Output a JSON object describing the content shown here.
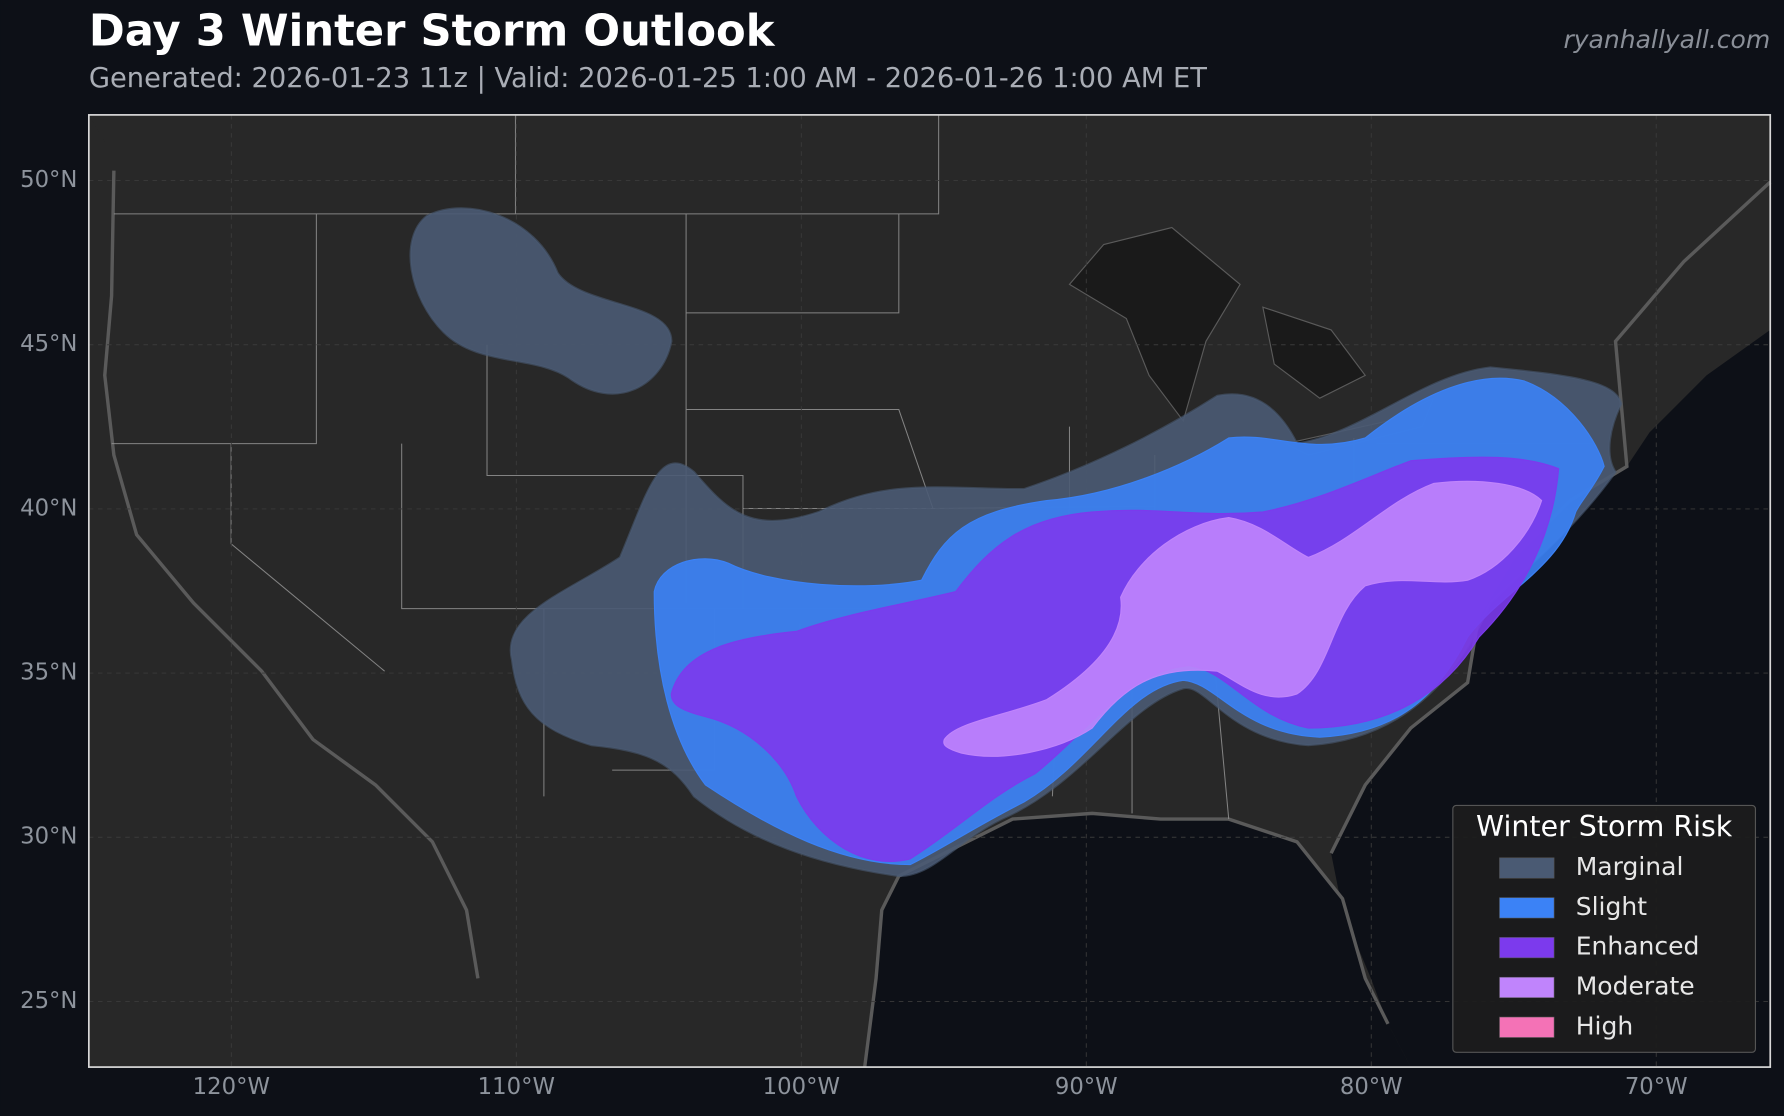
{
  "header": {
    "title": "Day 3 Winter Storm Outlook",
    "subtitle": "Generated: 2026-01-23 11z | Valid: 2026-01-25 1:00 AM - 2026-01-26 1:00 AM ET",
    "watermark": "ryanhallyall.com"
  },
  "map": {
    "lon_range": [
      -125,
      -66
    ],
    "lat_range": [
      23,
      52
    ],
    "lat_ticks": [
      {
        "value": 25,
        "label": "25°N"
      },
      {
        "value": 30,
        "label": "30°N"
      },
      {
        "value": 35,
        "label": "35°N"
      },
      {
        "value": 40,
        "label": "40°N"
      },
      {
        "value": 45,
        "label": "45°N"
      },
      {
        "value": 50,
        "label": "50°N"
      }
    ],
    "lon_ticks": [
      {
        "value": -120,
        "label": "120°W"
      },
      {
        "value": -110,
        "label": "110°W"
      },
      {
        "value": -100,
        "label": "100°W"
      },
      {
        "value": -90,
        "label": "90°W"
      },
      {
        "value": -80,
        "label": "80°W"
      },
      {
        "value": -70,
        "label": "70°W"
      }
    ],
    "grid": true,
    "legend": {
      "title": "Winter Storm Risk",
      "corner": "lower right",
      "items": [
        {
          "name": "Marginal",
          "color": "#4a5a73"
        },
        {
          "name": "Slight",
          "color": "#3b82f6"
        },
        {
          "name": "Enhanced",
          "color": "#7c3aed"
        },
        {
          "name": "Moderate",
          "color": "#c084fc"
        },
        {
          "name": "High",
          "color": "#f472b6"
        }
      ]
    }
  }
}
